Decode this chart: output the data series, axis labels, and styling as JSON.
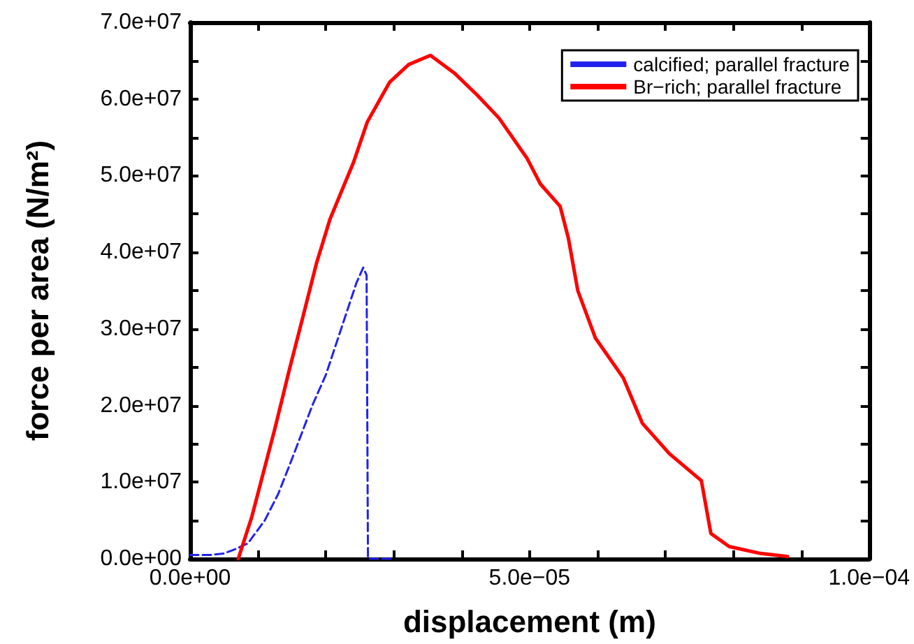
{
  "chart_data": {
    "type": "line",
    "xlabel": "displacement (m)",
    "ylabel": "force per area (N/m²)",
    "xlim": [
      0,
      0.0001
    ],
    "ylim": [
      0,
      70000000
    ],
    "xticks": [
      {
        "value": 0,
        "label": "0.0e+00"
      },
      {
        "value": 1e-05,
        "label": null
      },
      {
        "value": 2e-05,
        "label": null
      },
      {
        "value": 3e-05,
        "label": null
      },
      {
        "value": 4e-05,
        "label": null
      },
      {
        "value": 5e-05,
        "label": "5.0e−05"
      },
      {
        "value": 6e-05,
        "label": null
      },
      {
        "value": 7e-05,
        "label": null
      },
      {
        "value": 8e-05,
        "label": null
      },
      {
        "value": 9e-05,
        "label": null
      },
      {
        "value": 0.0001,
        "label": "1.0e−04"
      }
    ],
    "yticks": [
      {
        "value": 0,
        "label": "0.0e+00"
      },
      {
        "value": 5000000,
        "label": null
      },
      {
        "value": 10000000,
        "label": "1.0e+07"
      },
      {
        "value": 15000000,
        "label": null
      },
      {
        "value": 20000000,
        "label": "2.0e+07"
      },
      {
        "value": 25000000,
        "label": null
      },
      {
        "value": 30000000,
        "label": "3.0e+07"
      },
      {
        "value": 35000000,
        "label": null
      },
      {
        "value": 40000000,
        "label": "4.0e+07"
      },
      {
        "value": 45000000,
        "label": null
      },
      {
        "value": 50000000,
        "label": "5.0e+07"
      },
      {
        "value": 55000000,
        "label": null
      },
      {
        "value": 60000000,
        "label": "6.0e+07"
      },
      {
        "value": 65000000,
        "label": null
      },
      {
        "value": 70000000,
        "label": "7.0e+07"
      }
    ],
    "grid": false,
    "legend": "top right",
    "marker": "none",
    "series": [
      {
        "name": "calcified; parallel fracture",
        "color": "#2222ee",
        "line_style": "dashed",
        "x": [
          0,
          3e-06,
          5e-06,
          6.5e-06,
          8.5e-06,
          1.1e-05,
          1.3e-05,
          1.5e-05,
          1.8e-05,
          2e-05,
          2.3e-05,
          2.45e-05,
          2.55e-05,
          2.6e-05,
          2.62e-05,
          2.7e-05,
          3e-05
        ],
        "values": [
          500000,
          500000,
          700000,
          1200000,
          2000000,
          5000000,
          8500000,
          13000000,
          20000000,
          24000000,
          32000000,
          36000000,
          38000000,
          37000000,
          0,
          0,
          0
        ]
      },
      {
        "name": "Br−rich; parallel fracture",
        "color": "#ff0000",
        "line_style": "solid",
        "x": [
          7.1e-06,
          9.1e-06,
          1.25e-05,
          1.46e-05,
          1.66e-05,
          1.86e-05,
          2.06e-05,
          2.41e-05,
          2.61e-05,
          2.94e-05,
          3.22e-05,
          3.54e-05,
          3.89e-05,
          4.23e-05,
          4.55e-05,
          4.96e-05,
          5.16e-05,
          5.45e-05,
          5.57e-05,
          5.71e-05,
          5.97e-05,
          6.38e-05,
          6.66e-05,
          7.06e-05,
          7.53e-05,
          7.67e-05,
          7.94e-05,
          8.4e-05,
          8.8e-05
        ],
        "values": [
          0,
          5500000,
          17000000,
          24600000,
          31500000,
          38500000,
          44300000,
          51800000,
          57000000,
          62200000,
          64500000,
          65700000,
          63400000,
          60500000,
          57500000,
          52300000,
          48900000,
          46000000,
          41900000,
          35000000,
          28800000,
          23600000,
          17700000,
          13700000,
          10200000,
          3300000,
          1600000,
          700000,
          300000
        ]
      }
    ]
  }
}
